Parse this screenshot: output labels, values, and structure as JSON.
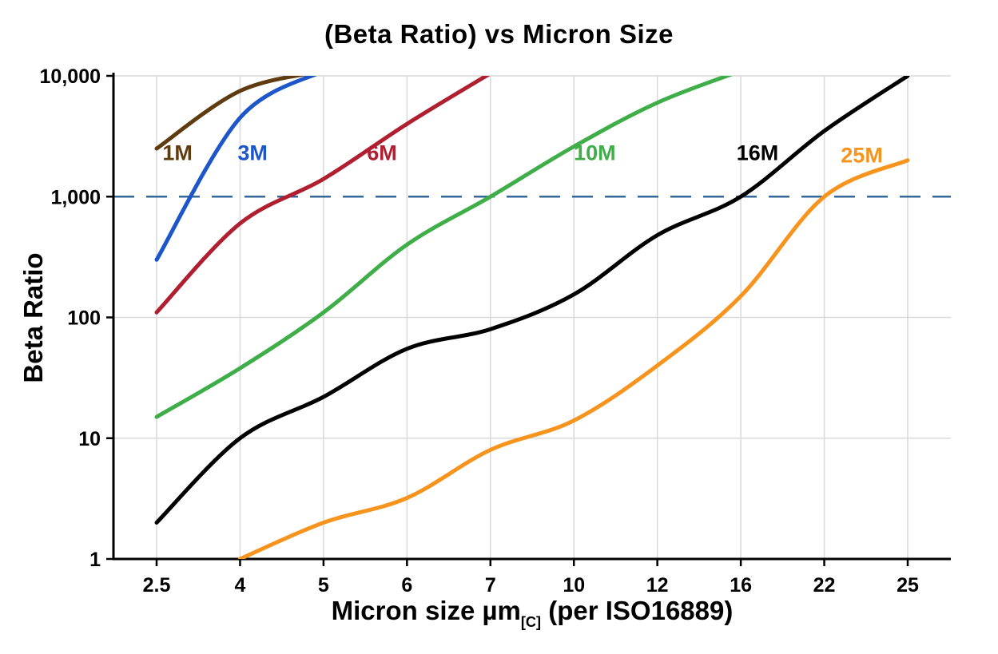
{
  "chart_data": {
    "type": "line",
    "title": "(Beta Ratio) vs Micron Size",
    "ylabel": "Beta Ratio",
    "xlabel_pre": "Micron size µm",
    "xlabel_sub": "[C]",
    "xlabel_post": " (per ISO16889)",
    "x_categories": [
      "2.5",
      "4",
      "5",
      "6",
      "7",
      "10",
      "12",
      "16",
      "22",
      "25"
    ],
    "x_axis_spacing": "categorical-equal",
    "y_scale": "log",
    "ylim": [
      1,
      10000
    ],
    "grid": true,
    "grid_color": "#d9d9d9",
    "axis_color": "#000000",
    "y_ticks": [
      {
        "value": 10000,
        "label": "10,000"
      },
      {
        "value": 1000,
        "label": "1,000"
      },
      {
        "value": 100,
        "label": "100"
      },
      {
        "value": 10,
        "label": "10"
      },
      {
        "value": 1,
        "label": "1"
      }
    ],
    "reference_line": {
      "value": 1000,
      "color": "#34689a",
      "style": "dashed"
    },
    "series": [
      {
        "name": "1M",
        "color": "#5e3c10",
        "values": [
          2500,
          7500,
          11000,
          null,
          null,
          null,
          null,
          null,
          null,
          null
        ],
        "label_pos": {
          "x_index": 0.25,
          "value": 2300
        }
      },
      {
        "name": "3M",
        "color": "#1d56c8",
        "values": [
          300,
          4500,
          11000,
          null,
          null,
          null,
          null,
          null,
          null,
          null
        ],
        "label_pos": {
          "x_index": 1.15,
          "value": 2300
        }
      },
      {
        "name": "6M",
        "color": "#b01f30",
        "values": [
          110,
          600,
          1400,
          4000,
          10500,
          null,
          null,
          null,
          null,
          null
        ],
        "label_pos": {
          "x_index": 2.7,
          "value": 2300
        }
      },
      {
        "name": "10M",
        "color": "#3fae49",
        "values": [
          15,
          38,
          110,
          400,
          1000,
          2600,
          6000,
          11000,
          null,
          null
        ],
        "label_pos": {
          "x_index": 5.25,
          "value": 2300
        }
      },
      {
        "name": "16M",
        "color": "#000000",
        "values": [
          2,
          10,
          22,
          55,
          80,
          155,
          480,
          1000,
          3500,
          10000
        ],
        "label_pos": {
          "x_index": 7.2,
          "value": 2300
        }
      },
      {
        "name": "25M",
        "color": "#f7941e",
        "values": [
          null,
          1,
          2,
          3.2,
          8,
          14,
          40,
          150,
          1000,
          2000
        ],
        "label_pos": {
          "x_index": 8.45,
          "value": 2200
        }
      }
    ]
  }
}
